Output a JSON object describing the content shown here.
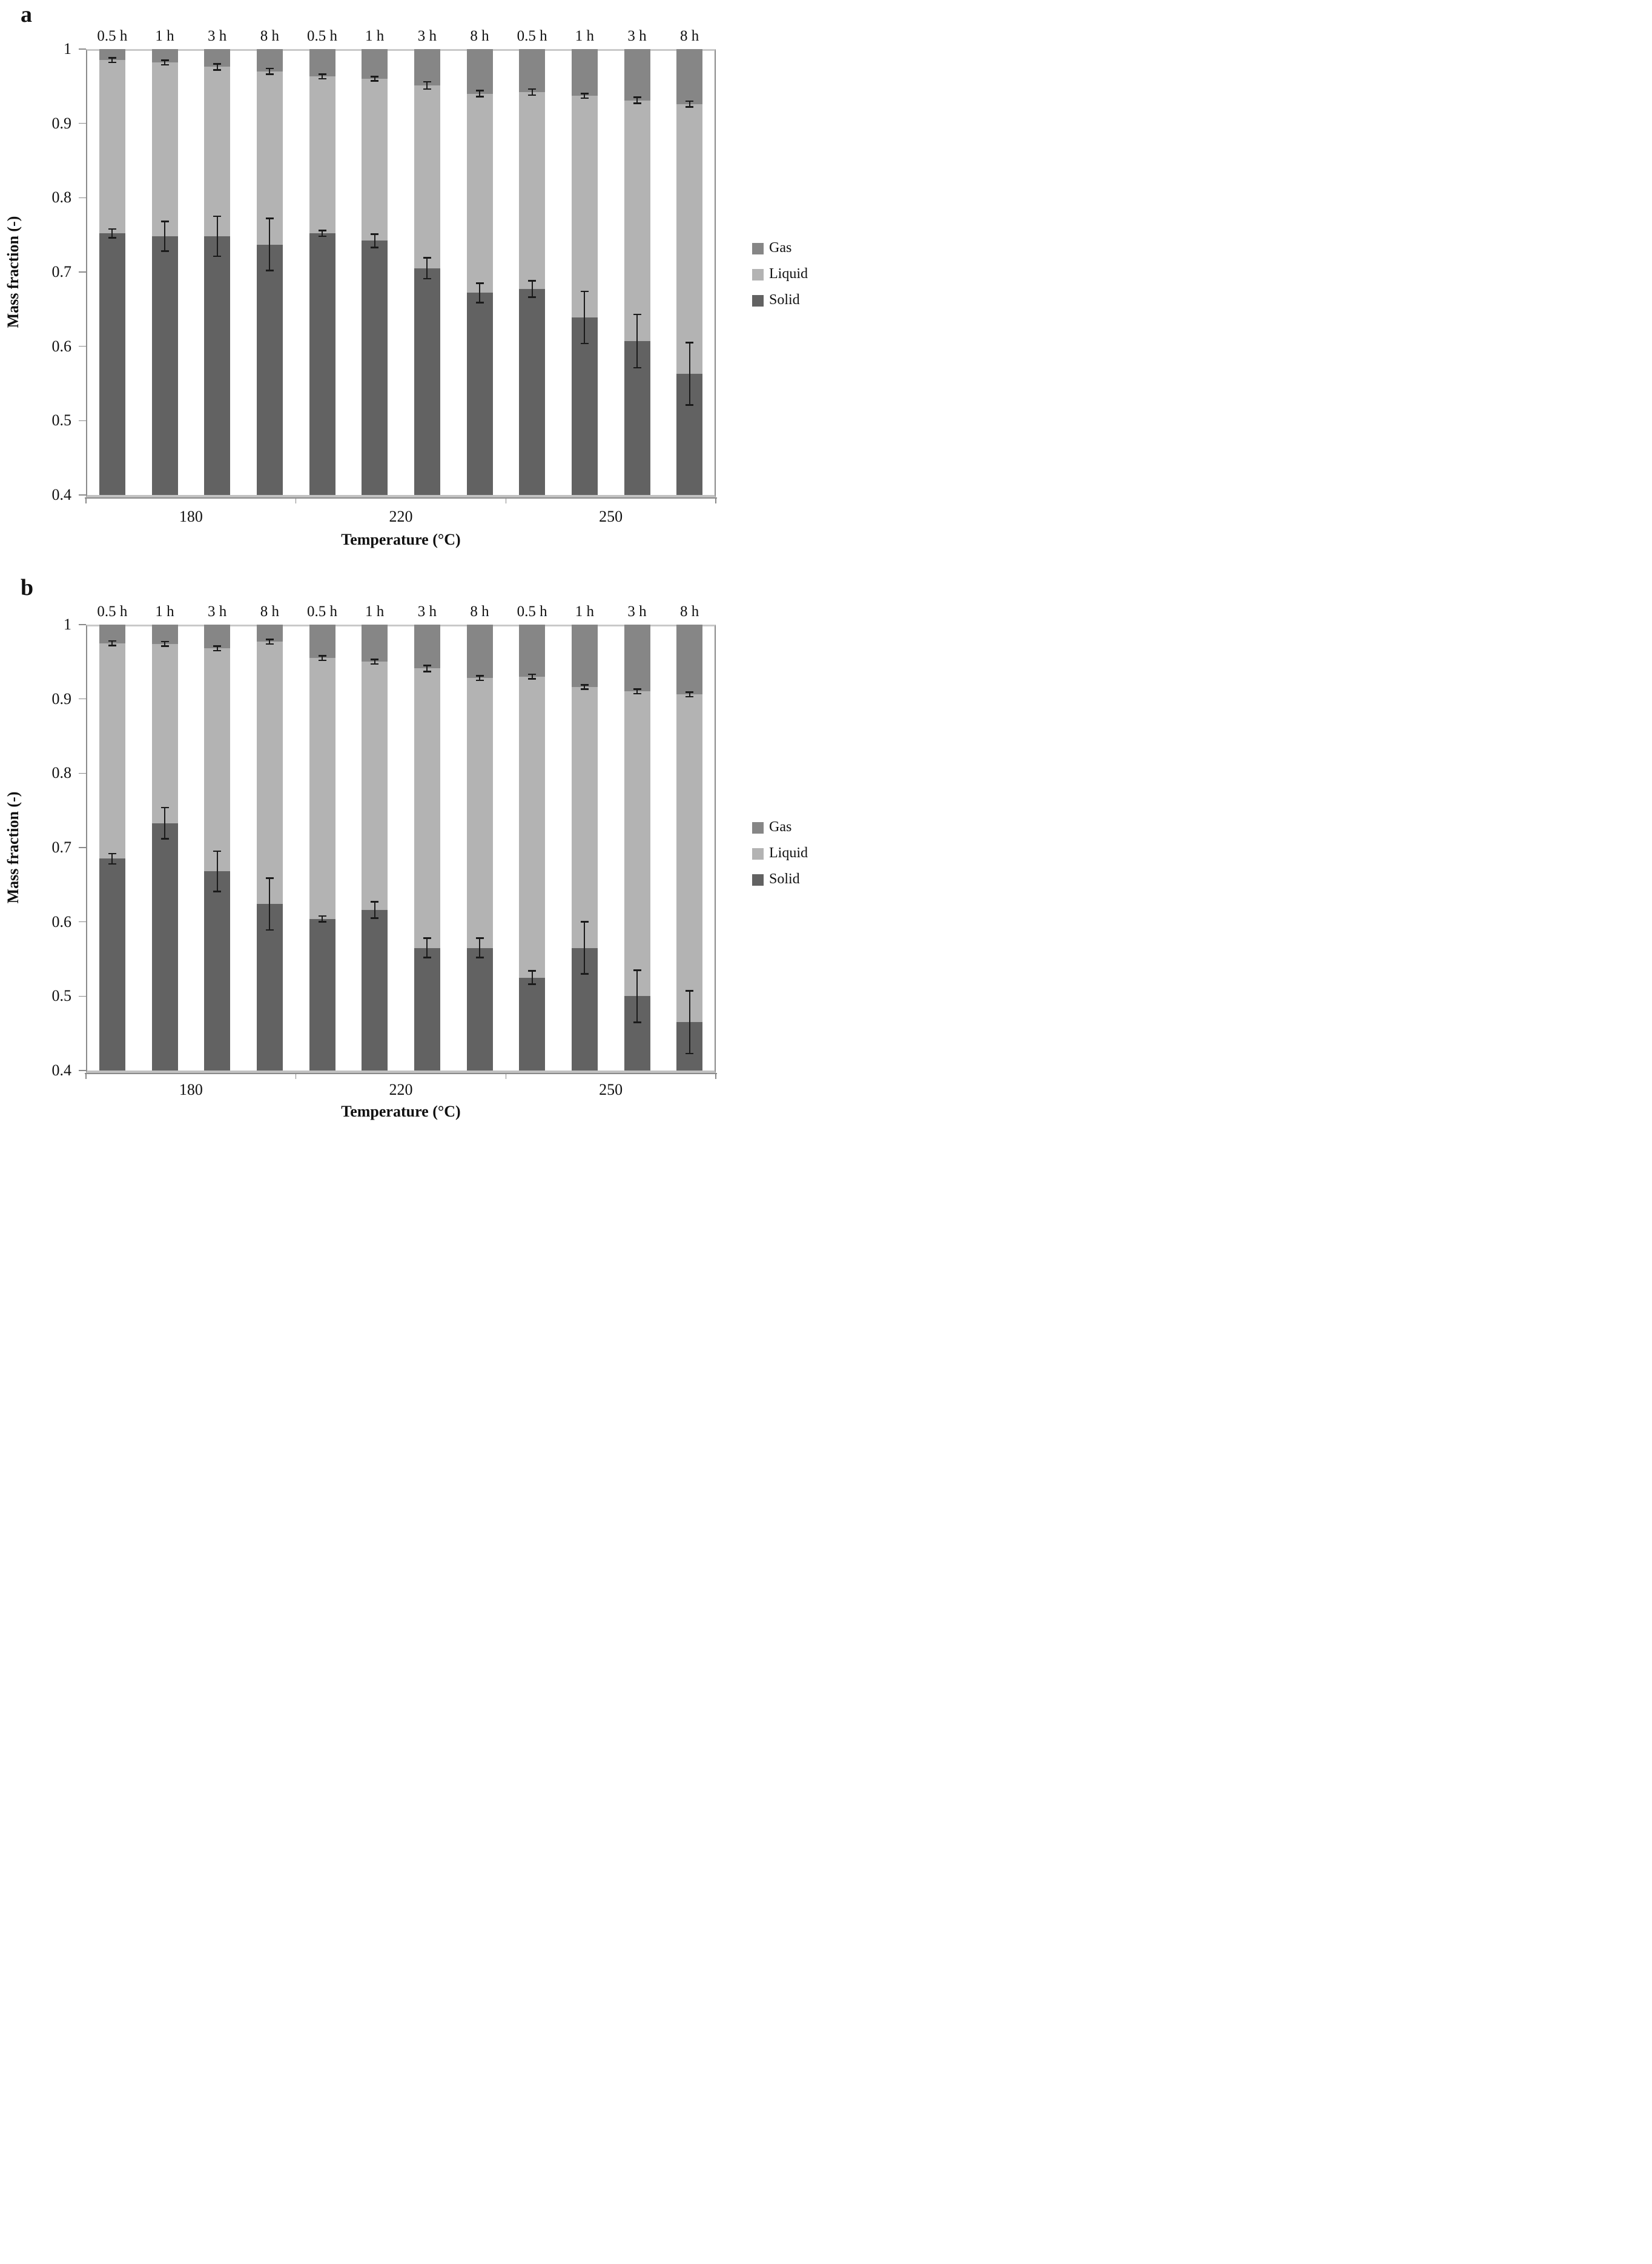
{
  "colors": {
    "gas": "#868686",
    "liquid": "#b3b3b3",
    "solid": "#626262",
    "error_bar": "#1a1a1a",
    "axis_line": "#8a8a8a",
    "axis_line_light": "#c9c9c9",
    "text": "#111111"
  },
  "chart_data": [
    {
      "panel": "a",
      "type": "bar",
      "stacked": true,
      "ylabel": "Mass fraction (-)",
      "xlabel": "Temperature (°C)",
      "ylim": [
        0.4,
        1
      ],
      "grid": false,
      "y_tick_labels": [
        "1",
        "0.9",
        "0.8",
        "0.7",
        "0.6",
        "0.5",
        "0.4"
      ],
      "y_tick_values": [
        1,
        0.9,
        0.8,
        0.7,
        0.6,
        0.5,
        0.4
      ],
      "temperature_groups": [
        "180",
        "220",
        "250"
      ],
      "bar_time_labels": [
        "0.5 h",
        "1 h",
        "3 h",
        "8 h",
        "0.5 h",
        "1 h",
        "3 h",
        "8 h",
        "0.5 h",
        "1 h",
        "3 h",
        "8 h"
      ],
      "series": [
        {
          "name": "Solid",
          "values": [
            0.752,
            0.748,
            0.748,
            0.737,
            0.752,
            0.742,
            0.705,
            0.672,
            0.677,
            0.639,
            0.607,
            0.563
          ]
        },
        {
          "name": "Liquid",
          "values": [
            0.233,
            0.234,
            0.228,
            0.233,
            0.211,
            0.218,
            0.246,
            0.268,
            0.265,
            0.298,
            0.324,
            0.363
          ]
        },
        {
          "name": "Gas",
          "values": [
            0.015,
            0.018,
            0.024,
            0.03,
            0.037,
            0.04,
            0.049,
            0.06,
            0.058,
            0.063,
            0.069,
            0.074
          ]
        }
      ],
      "error_bars": {
        "solid_liquid_boundary": {
          "at": [
            0.752,
            0.748,
            0.748,
            0.737,
            0.752,
            0.742,
            0.705,
            0.672,
            0.677,
            0.639,
            0.607,
            0.563
          ],
          "plus_minus": [
            0.006,
            0.02,
            0.027,
            0.035,
            0.004,
            0.009,
            0.014,
            0.013,
            0.011,
            0.035,
            0.036,
            0.042
          ]
        },
        "liquid_gas_boundary": {
          "at": [
            0.985,
            0.982,
            0.976,
            0.97,
            0.963,
            0.96,
            0.951,
            0.94,
            0.942,
            0.937,
            0.931,
            0.926
          ],
          "plus_minus": [
            0.003,
            0.003,
            0.004,
            0.004,
            0.003,
            0.003,
            0.005,
            0.004,
            0.004,
            0.003,
            0.004,
            0.004
          ]
        }
      },
      "legend_entries": [
        "Gas",
        "Liquid",
        "Solid"
      ],
      "legend_position": "right"
    },
    {
      "panel": "b",
      "type": "bar",
      "stacked": true,
      "ylabel": "Mass fraction (-)",
      "xlabel": "Temperature (°C)",
      "ylim": [
        0.4,
        1
      ],
      "grid": false,
      "y_tick_labels": [
        "1",
        "0.9",
        "0.8",
        "0.7",
        "0.6",
        "0.5",
        "0.4"
      ],
      "y_tick_values": [
        1,
        0.9,
        0.8,
        0.7,
        0.6,
        0.5,
        0.4
      ],
      "temperature_groups": [
        "180",
        "220",
        "250"
      ],
      "bar_time_labels": [
        "0.5 h",
        "1 h",
        "3 h",
        "8 h",
        "0.5 h",
        "1 h",
        "3 h",
        "8 h",
        "0.5 h",
        "1 h",
        "3 h",
        "8 h"
      ],
      "series": [
        {
          "name": "Solid",
          "values": [
            0.685,
            0.733,
            0.668,
            0.624,
            0.604,
            0.616,
            0.565,
            0.565,
            0.525,
            0.565,
            0.5,
            0.465
          ]
        },
        {
          "name": "Liquid",
          "values": [
            0.29,
            0.241,
            0.3,
            0.353,
            0.351,
            0.334,
            0.376,
            0.363,
            0.405,
            0.351,
            0.41,
            0.441
          ]
        },
        {
          "name": "Gas",
          "values": [
            0.025,
            0.026,
            0.032,
            0.023,
            0.045,
            0.05,
            0.059,
            0.072,
            0.07,
            0.084,
            0.09,
            0.094
          ]
        }
      ],
      "error_bars": {
        "solid_liquid_boundary": {
          "at": [
            0.685,
            0.733,
            0.668,
            0.624,
            0.604,
            0.616,
            0.565,
            0.565,
            0.525,
            0.565,
            0.5,
            0.465
          ],
          "plus_minus": [
            0.007,
            0.021,
            0.027,
            0.035,
            0.004,
            0.011,
            0.013,
            0.013,
            0.009,
            0.035,
            0.035,
            0.042
          ]
        },
        "liquid_gas_boundary": {
          "at": [
            0.975,
            0.974,
            0.968,
            0.977,
            0.955,
            0.95,
            0.941,
            0.928,
            0.93,
            0.916,
            0.91,
            0.906
          ],
          "plus_minus": [
            0.003,
            0.003,
            0.003,
            0.003,
            0.003,
            0.003,
            0.004,
            0.003,
            0.003,
            0.003,
            0.003,
            0.003
          ]
        }
      },
      "legend_entries": [
        "Gas",
        "Liquid",
        "Solid"
      ],
      "legend_position": "right"
    }
  ]
}
